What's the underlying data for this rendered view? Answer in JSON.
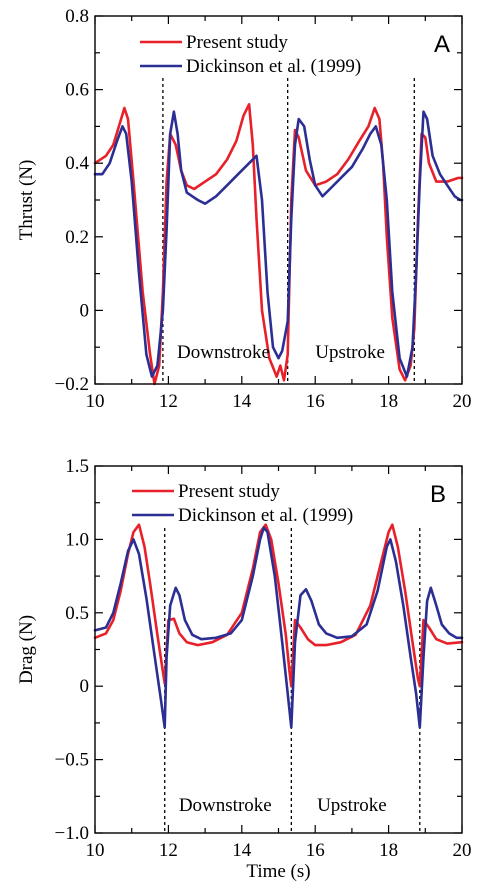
{
  "colors": {
    "present": "#e8202a",
    "dickinson": "#2b2f93",
    "axis": "#000000"
  },
  "chart_data": [
    {
      "type": "line",
      "panel": "A",
      "xlabel": "",
      "ylabel": "Thrust (N)",
      "xlim": [
        10,
        20
      ],
      "ylim": [
        -0.2,
        0.8
      ],
      "xticks": [
        "10",
        "12",
        "14",
        "16",
        "18",
        "20"
      ],
      "yticks": [
        "−0.2",
        "0",
        "0.2",
        "0.4",
        "0.6",
        "0.8"
      ],
      "xtick_values": [
        10,
        12,
        14,
        16,
        18,
        20
      ],
      "ytick_values": [
        -0.2,
        0,
        0.2,
        0.4,
        0.6,
        0.8
      ],
      "legend_position": "top-left",
      "reversal_times": [
        11.85,
        15.25,
        18.7
      ],
      "annotations": [
        {
          "text": "Downstroke",
          "x": 13.5,
          "y": -0.13
        },
        {
          "text": "Upstroke",
          "x": 16.95,
          "y": -0.13
        }
      ],
      "series": [
        {
          "name": "Present study",
          "color": "#e8202a",
          "x": [
            10,
            10.3,
            10.5,
            10.65,
            10.8,
            10.9,
            11.05,
            11.3,
            11.5,
            11.62,
            11.75,
            11.85,
            11.95,
            12.05,
            12.2,
            12.35,
            12.5,
            12.7,
            13.0,
            13.3,
            13.6,
            13.85,
            14.05,
            14.2,
            14.3,
            14.4,
            14.55,
            14.75,
            14.95,
            15.05,
            15.15,
            15.25,
            15.35,
            15.45,
            15.55,
            15.75,
            16.0,
            16.3,
            16.6,
            16.9,
            17.2,
            17.45,
            17.62,
            17.75,
            17.85,
            17.95,
            18.1,
            18.3,
            18.45,
            18.6,
            18.7,
            18.8,
            18.9,
            19.0,
            19.1,
            19.3,
            19.6,
            19.9,
            20
          ],
          "y": [
            0.4,
            0.42,
            0.45,
            0.5,
            0.55,
            0.52,
            0.35,
            0.05,
            -0.12,
            -0.2,
            -0.15,
            0.05,
            0.35,
            0.48,
            0.45,
            0.38,
            0.34,
            0.33,
            0.35,
            0.37,
            0.41,
            0.46,
            0.53,
            0.56,
            0.45,
            0.25,
            0.0,
            -0.13,
            -0.18,
            -0.15,
            -0.19,
            -0.12,
            0.3,
            0.49,
            0.47,
            0.38,
            0.34,
            0.35,
            0.37,
            0.41,
            0.46,
            0.5,
            0.55,
            0.52,
            0.4,
            0.2,
            -0.02,
            -0.16,
            -0.19,
            -0.15,
            -0.05,
            0.25,
            0.48,
            0.47,
            0.4,
            0.35,
            0.35,
            0.36,
            0.36
          ]
        },
        {
          "name": "Dickinson et al. (1999)",
          "color": "#2b2f93",
          "x": [
            10,
            10.2,
            10.4,
            10.6,
            10.75,
            10.85,
            11.0,
            11.2,
            11.4,
            11.55,
            11.7,
            11.85,
            11.95,
            12.05,
            12.15,
            12.25,
            12.35,
            12.5,
            12.65,
            12.8,
            13.0,
            13.3,
            13.6,
            13.9,
            14.2,
            14.4,
            14.55,
            14.7,
            14.85,
            15.0,
            15.1,
            15.25,
            15.35,
            15.45,
            15.55,
            15.7,
            15.85,
            16.0,
            16.2,
            16.4,
            16.7,
            17.0,
            17.3,
            17.5,
            17.65,
            17.8,
            17.95,
            18.1,
            18.3,
            18.5,
            18.65,
            18.75,
            18.85,
            18.95,
            19.05,
            19.2,
            19.4,
            19.6,
            19.8,
            19.95,
            20
          ],
          "y": [
            0.37,
            0.37,
            0.4,
            0.46,
            0.5,
            0.48,
            0.35,
            0.1,
            -0.12,
            -0.18,
            -0.15,
            0.0,
            0.22,
            0.48,
            0.54,
            0.48,
            0.38,
            0.32,
            0.31,
            0.3,
            0.29,
            0.31,
            0.34,
            0.37,
            0.4,
            0.42,
            0.3,
            0.05,
            -0.1,
            -0.13,
            -0.11,
            -0.03,
            0.25,
            0.45,
            0.52,
            0.5,
            0.41,
            0.34,
            0.31,
            0.33,
            0.36,
            0.39,
            0.44,
            0.48,
            0.5,
            0.45,
            0.3,
            0.05,
            -0.13,
            -0.18,
            -0.1,
            0.1,
            0.35,
            0.54,
            0.52,
            0.42,
            0.37,
            0.34,
            0.31,
            0.3,
            0.3
          ]
        }
      ],
      "panel_label": "A"
    },
    {
      "type": "line",
      "panel": "B",
      "xlabel": "Time (s)",
      "ylabel": "Drag (N)",
      "xlim": [
        10,
        20
      ],
      "ylim": [
        -1.0,
        1.5
      ],
      "xticks": [
        "10",
        "12",
        "14",
        "16",
        "18",
        "20"
      ],
      "yticks": [
        "−1.0",
        "−0.5",
        "0",
        "0.5",
        "1.0",
        "1.5"
      ],
      "xtick_values": [
        10,
        12,
        14,
        16,
        18,
        20
      ],
      "ytick_values": [
        -1.0,
        -0.5,
        0,
        0.5,
        1.0,
        1.5
      ],
      "legend_position": "top-left",
      "reversal_times": [
        11.9,
        15.35,
        18.85
      ],
      "annotations": [
        {
          "text": "Downstroke",
          "x": 13.55,
          "y": -0.85
        },
        {
          "text": "Upstroke",
          "x": 17.0,
          "y": -0.85
        }
      ],
      "series": [
        {
          "name": "Present study",
          "color": "#e8202a",
          "x": [
            10,
            10.3,
            10.5,
            10.7,
            10.9,
            11.05,
            11.2,
            11.35,
            11.5,
            11.7,
            11.85,
            11.9,
            12.0,
            12.15,
            12.3,
            12.5,
            12.8,
            13.2,
            13.6,
            14.0,
            14.3,
            14.5,
            14.65,
            14.8,
            15.0,
            15.2,
            15.3,
            15.35,
            15.45,
            15.6,
            15.8,
            16.0,
            16.3,
            16.7,
            17.1,
            17.5,
            17.8,
            18.0,
            18.1,
            18.25,
            18.45,
            18.65,
            18.8,
            18.85,
            18.95,
            19.1,
            19.3,
            19.6,
            20
          ],
          "y": [
            0.33,
            0.36,
            0.45,
            0.65,
            0.9,
            1.05,
            1.1,
            0.95,
            0.7,
            0.35,
            0.1,
            0.02,
            0.45,
            0.46,
            0.36,
            0.3,
            0.28,
            0.3,
            0.35,
            0.5,
            0.8,
            1.05,
            1.1,
            1.0,
            0.7,
            0.35,
            0.1,
            0.0,
            0.45,
            0.4,
            0.32,
            0.28,
            0.28,
            0.3,
            0.35,
            0.55,
            0.85,
            1.05,
            1.1,
            0.95,
            0.65,
            0.3,
            0.05,
            0.0,
            0.45,
            0.4,
            0.32,
            0.29,
            0.3
          ]
        },
        {
          "name": "Dickinson et al. (1999)",
          "color": "#2b2f93",
          "x": [
            10,
            10.3,
            10.5,
            10.7,
            10.9,
            11.05,
            11.2,
            11.4,
            11.6,
            11.8,
            11.9,
            11.95,
            12.05,
            12.2,
            12.3,
            12.45,
            12.65,
            12.9,
            13.3,
            13.7,
            14.0,
            14.3,
            14.5,
            14.6,
            14.7,
            14.9,
            15.1,
            15.25,
            15.35,
            15.45,
            15.6,
            15.75,
            15.9,
            16.1,
            16.3,
            16.6,
            17.0,
            17.4,
            17.7,
            17.95,
            18.05,
            18.2,
            18.4,
            18.6,
            18.75,
            18.85,
            18.95,
            19.05,
            19.15,
            19.3,
            19.45,
            19.65,
            19.85,
            20
          ],
          "y": [
            0.38,
            0.4,
            0.5,
            0.7,
            0.92,
            1.0,
            0.9,
            0.6,
            0.25,
            -0.1,
            -0.28,
            0.2,
            0.55,
            0.67,
            0.62,
            0.45,
            0.35,
            0.32,
            0.33,
            0.36,
            0.45,
            0.75,
            1.0,
            1.08,
            1.05,
            0.75,
            0.3,
            -0.05,
            -0.28,
            0.3,
            0.62,
            0.66,
            0.58,
            0.42,
            0.36,
            0.33,
            0.34,
            0.42,
            0.65,
            0.95,
            1.0,
            0.85,
            0.55,
            0.2,
            -0.05,
            -0.28,
            0.2,
            0.58,
            0.67,
            0.55,
            0.42,
            0.36,
            0.33,
            0.33
          ]
        }
      ],
      "panel_label": "B"
    }
  ]
}
